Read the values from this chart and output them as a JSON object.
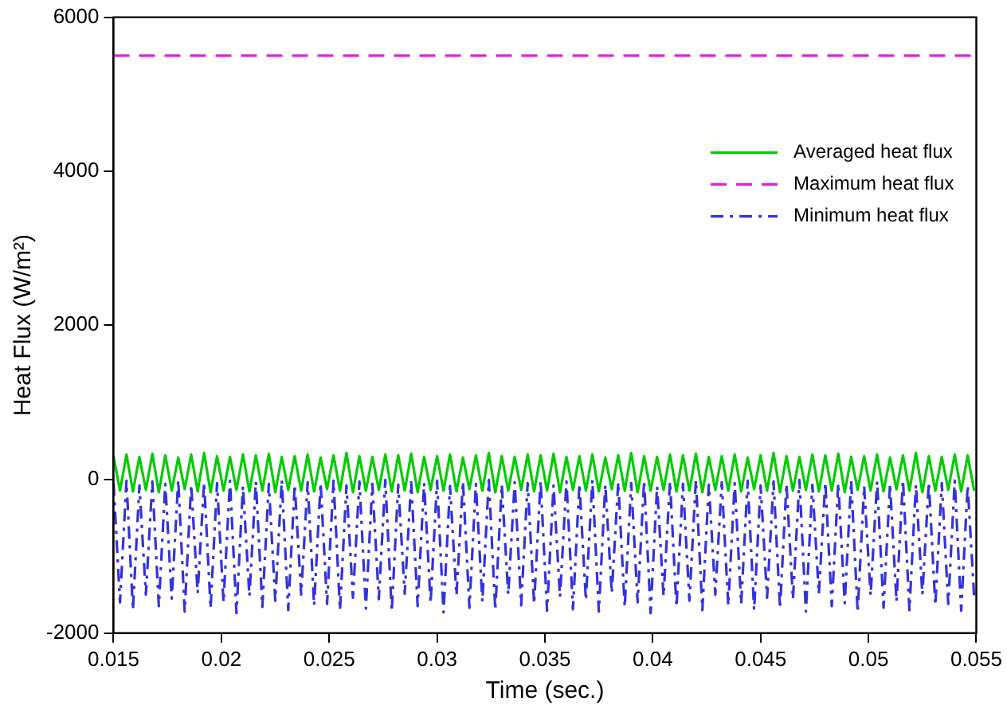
{
  "chart_data": {
    "type": "line",
    "xlabel": "Time (sec.)",
    "ylabel": "Heat Flux (W/m²)",
    "xlim": [
      0.015,
      0.055
    ],
    "xticks": [
      0.015,
      0.02,
      0.025,
      0.03,
      0.035,
      0.04,
      0.045,
      0.05,
      0.055
    ],
    "ylim": [
      -2000,
      6000
    ],
    "yticks": [
      -2000,
      0,
      2000,
      4000,
      6000
    ],
    "grid": false,
    "legend": "top right",
    "marker": "none",
    "x": [
      0.015,
      0.0153,
      0.0156,
      0.0159,
      0.0162,
      0.0165,
      0.0168,
      0.0171,
      0.0174,
      0.0177,
      0.018,
      0.0183,
      0.0186,
      0.0189,
      0.0192,
      0.0195,
      0.0198,
      0.0201,
      0.0204,
      0.0207,
      0.021,
      0.0213,
      0.0216,
      0.0219,
      0.0222,
      0.0225,
      0.0228,
      0.0231,
      0.0234,
      0.0237,
      0.024,
      0.0243,
      0.0246,
      0.0249,
      0.0252,
      0.0255,
      0.0258,
      0.0261,
      0.0264,
      0.0267,
      0.027,
      0.0273,
      0.0276,
      0.0279,
      0.0282,
      0.0285,
      0.0288,
      0.0291,
      0.0294,
      0.0297,
      0.03,
      0.0303,
      0.0306,
      0.0309,
      0.0312,
      0.0315,
      0.0318,
      0.0321,
      0.0324,
      0.0327,
      0.033,
      0.0333,
      0.0336,
      0.0339,
      0.0342,
      0.0345,
      0.0348,
      0.0351,
      0.0354,
      0.0357,
      0.036,
      0.0363,
      0.0366,
      0.0369,
      0.0372,
      0.0375,
      0.0378,
      0.0381,
      0.0384,
      0.0387,
      0.039,
      0.0393,
      0.0396,
      0.0399,
      0.0402,
      0.0405,
      0.0408,
      0.0411,
      0.0414,
      0.0417,
      0.042,
      0.0423,
      0.0426,
      0.0429,
      0.0432,
      0.0435,
      0.0438,
      0.0441,
      0.0444,
      0.0447,
      0.045,
      0.0453,
      0.0456,
      0.0459,
      0.0462,
      0.0465,
      0.0468,
      0.0471,
      0.0474,
      0.0477,
      0.048,
      0.0483,
      0.0486,
      0.0489,
      0.0492,
      0.0495,
      0.0498,
      0.0501,
      0.0504,
      0.0507,
      0.051,
      0.0513,
      0.0516,
      0.0519,
      0.0522,
      0.0525,
      0.0528,
      0.0531,
      0.0534,
      0.0537,
      0.054,
      0.0543,
      0.0546,
      0.0549
    ],
    "series": [
      {
        "name": "Averaged heat flux",
        "color": "#00cc00",
        "line_style": "solid",
        "values": [
          300,
          -150,
          320,
          -160,
          290,
          -140,
          330,
          -170,
          310,
          -150,
          280,
          -130,
          320,
          -160,
          340,
          -170,
          300,
          -150,
          290,
          -140,
          320,
          -160,
          310,
          -150,
          330,
          -170,
          290,
          -140,
          300,
          -150,
          320,
          -160,
          280,
          -130,
          310,
          -150,
          340,
          -170,
          300,
          -150,
          290,
          -140,
          320,
          -160,
          310,
          -150,
          330,
          -170,
          290,
          -140,
          300,
          -150,
          320,
          -160,
          280,
          -130,
          310,
          -150,
          340,
          -170,
          300,
          -150,
          290,
          -140,
          320,
          -160,
          310,
          -150,
          330,
          -170,
          290,
          -140,
          300,
          -150,
          320,
          -160,
          280,
          -130,
          310,
          -150,
          340,
          -170,
          300,
          -150,
          290,
          -140,
          320,
          -160,
          310,
          -150,
          330,
          -170,
          290,
          -140,
          300,
          -150,
          320,
          -160,
          280,
          -130,
          310,
          -150,
          340,
          -170,
          300,
          -150,
          290,
          -140,
          320,
          -160,
          310,
          -150,
          330,
          -170,
          290,
          -140,
          300,
          -150,
          320,
          -160,
          280,
          -130,
          310,
          -150,
          340,
          -170,
          300,
          -150,
          290,
          -140,
          320,
          -160,
          310,
          -150
        ]
      },
      {
        "name": "Maximum heat flux",
        "color": "#e020e0",
        "line_style": "dashed",
        "x": [
          0.015,
          0.055
        ],
        "values": [
          5500,
          5500
        ]
      },
      {
        "name": "Minimum heat flux",
        "color": "#3333dd",
        "line_style": "dashdot",
        "values": [
          -50,
          -1600,
          -20,
          -1700,
          -80,
          -1500,
          -30,
          -1650,
          -60,
          -1550,
          -10,
          -1720,
          -70,
          -1480,
          -40,
          -1680,
          -50,
          -1600,
          -20,
          -1740,
          -90,
          -1520,
          -30,
          -1660,
          -60,
          -1580,
          -10,
          -1700,
          -70,
          -1500,
          -40,
          -1640,
          -50,
          -1620,
          -20,
          -1700,
          -80,
          -1540,
          -30,
          -1680,
          -60,
          -1560,
          -10,
          -1720,
          -70,
          -1490,
          -40,
          -1650,
          -50,
          -1610,
          -20,
          -1730,
          -90,
          -1510,
          -30,
          -1670,
          -60,
          -1590,
          -10,
          -1700,
          -70,
          -1500,
          -40,
          -1640,
          -50,
          -1620,
          -20,
          -1710,
          -80,
          -1530,
          -30,
          -1690,
          -60,
          -1570,
          -10,
          -1720,
          -70,
          -1480,
          -40,
          -1660,
          -50,
          -1600,
          -20,
          -1740,
          -90,
          -1520,
          -30,
          -1660,
          -60,
          -1580,
          -10,
          -1700,
          -70,
          -1500,
          -40,
          -1640,
          -50,
          -1620,
          -20,
          -1700,
          -80,
          -1540,
          -30,
          -1680,
          -60,
          -1560,
          -10,
          -1720,
          -70,
          -1490,
          -40,
          -1650,
          -50,
          -1610,
          -20,
          -1730,
          -90,
          -1510,
          -30,
          -1670,
          -60,
          -1590,
          -10,
          -1700,
          -70,
          -1500,
          -40,
          -1640,
          -50,
          -1620,
          -20,
          -1710,
          -80,
          -1530
        ]
      }
    ]
  }
}
